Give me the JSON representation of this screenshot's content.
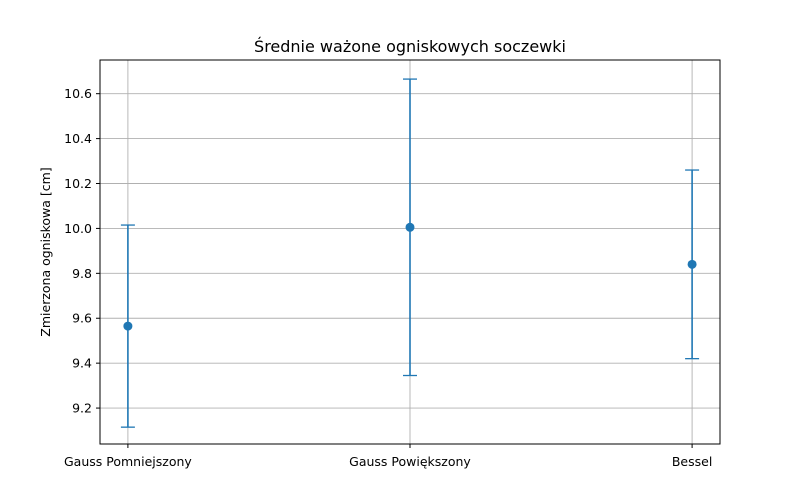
{
  "chart_data": {
    "type": "errorbar",
    "title": "Średnie ważone ogniskowych soczewki",
    "xlabel": "",
    "ylabel": "Zmierzona ogniskowa [cm]",
    "categories": [
      "Gauss Pomniejszony",
      "Gauss Powiększony",
      "Bessel"
    ],
    "series": [
      {
        "values": [
          9.565,
          10.005,
          9.84
        ],
        "errors": [
          0.45,
          0.66,
          0.42
        ],
        "color": "#1f77b4"
      }
    ],
    "ylim": [
      9.04,
      10.75
    ],
    "yticks": [
      9.2,
      9.4,
      9.6,
      9.8,
      10.0,
      10.2,
      10.4,
      10.6
    ],
    "ytick_labels": [
      "9.2",
      "9.4",
      "9.6",
      "9.8",
      "10.0",
      "10.2",
      "10.4",
      "10.6"
    ],
    "grid": true
  }
}
